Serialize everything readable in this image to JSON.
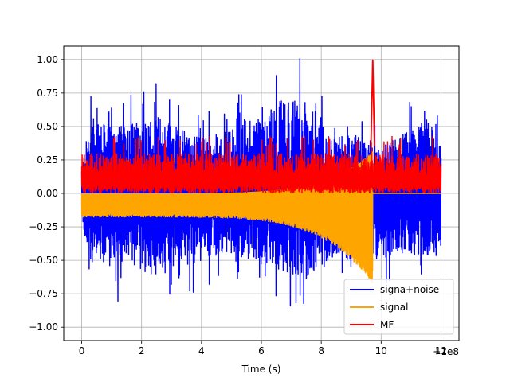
{
  "chart_data": {
    "type": "line",
    "title": "",
    "xlabel": "Time (s)",
    "ylabel": "",
    "x_offset_label": "+1e8",
    "xlim": [
      -0.6,
      12.6
    ],
    "ylim": [
      -1.1,
      1.1
    ],
    "x_ticks": [
      0,
      2,
      4,
      6,
      8,
      10,
      12
    ],
    "x_tick_labels": [
      "0",
      "2",
      "4",
      "6",
      "8",
      "10",
      "12"
    ],
    "y_ticks": [
      -1.0,
      -0.75,
      -0.5,
      -0.25,
      0.0,
      0.25,
      0.5,
      0.75,
      1.0
    ],
    "y_tick_labels": [
      "−1.00",
      "−0.75",
      "−0.50",
      "−0.25",
      "0.00",
      "0.25",
      "0.50",
      "0.75",
      "1.00"
    ],
    "grid": true,
    "legend_position": "lower-right",
    "series": [
      {
        "name": "signa+noise",
        "color": "#0000ff",
        "x_range": [
          0,
          12
        ],
        "envelope_max": [
          [
            0,
            0.3
          ],
          [
            0.3,
            0.82
          ],
          [
            1.0,
            0.7
          ],
          [
            2.7,
            0.85
          ],
          [
            4.0,
            0.6
          ],
          [
            5.0,
            0.7
          ],
          [
            6.3,
            0.98
          ],
          [
            7.5,
            1.02
          ],
          [
            8.5,
            0.6
          ],
          [
            9.3,
            0.65
          ],
          [
            10.0,
            0.5
          ],
          [
            11.5,
            0.8
          ],
          [
            12.0,
            0.6
          ]
        ],
        "envelope_min": [
          [
            0,
            -0.3
          ],
          [
            0.3,
            -0.78
          ],
          [
            1.0,
            -0.8
          ],
          [
            2.7,
            -0.88
          ],
          [
            4.0,
            -0.73
          ],
          [
            5.0,
            -0.65
          ],
          [
            6.3,
            -0.8
          ],
          [
            7.5,
            -0.93
          ],
          [
            8.5,
            -0.7
          ],
          [
            9.7,
            -0.75
          ],
          [
            10.5,
            -0.65
          ],
          [
            12.0,
            -0.68
          ]
        ]
      },
      {
        "name": "signal",
        "color": "#ffa500",
        "x_range": [
          0,
          9.72
        ],
        "description_values": {
          "start_max": 0.0,
          "start_min": -0.18,
          "end_max": 0.32,
          "end_min": -0.68,
          "after_merger": 0.0
        }
      },
      {
        "name": "MF",
        "color": "#ff0000",
        "x_range": [
          0,
          12
        ],
        "baseline_min": 0.0,
        "typical_max": 0.3,
        "peak": {
          "x": 9.72,
          "y": 1.0
        }
      }
    ]
  }
}
